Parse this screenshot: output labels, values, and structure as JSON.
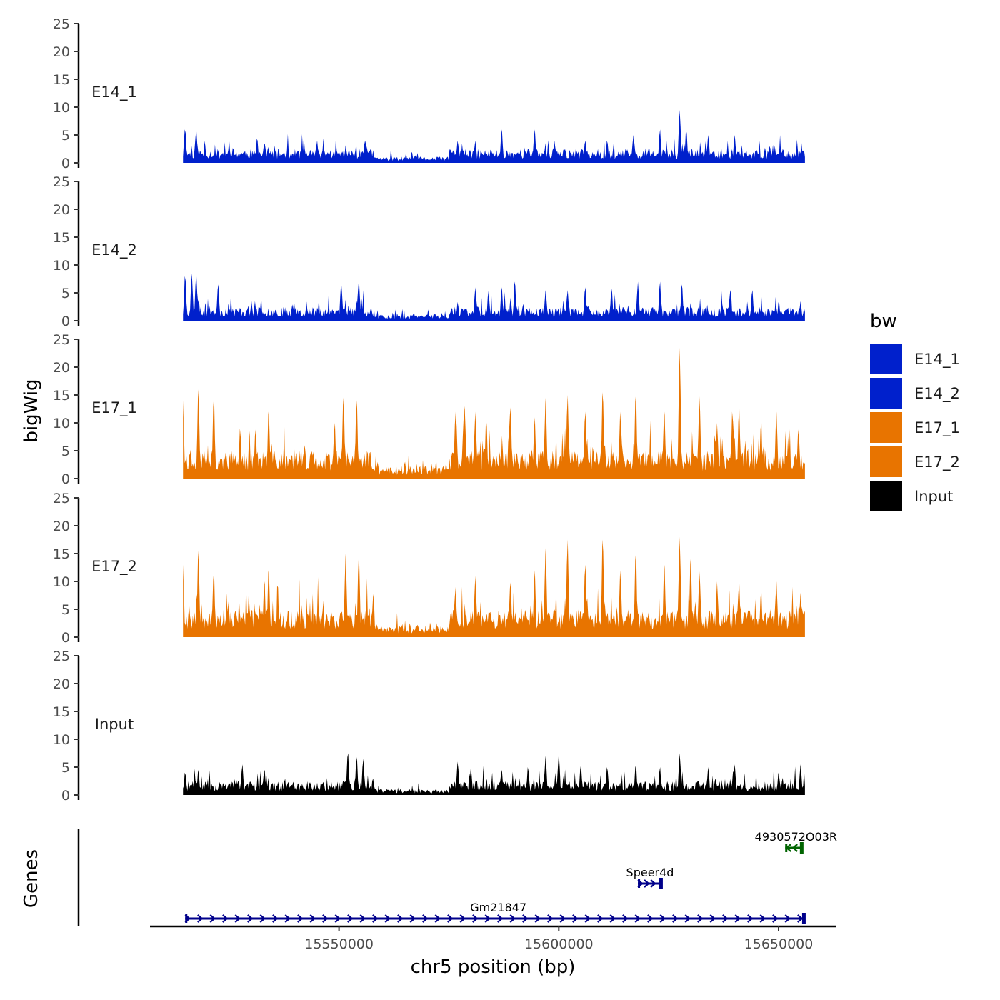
{
  "chart_data": {
    "type": "area",
    "title": "",
    "ylabel": "bigWig",
    "genes_label": "Genes",
    "xlabel": "chr5 position (bp)",
    "chromosome": "chr5",
    "xlim": [
      15507000,
      15663000
    ],
    "data_range": [
      15514500,
      15656000
    ],
    "ylim": [
      0,
      25
    ],
    "yticks": [
      0,
      5,
      10,
      15,
      20,
      25
    ],
    "xticks": [
      15550000,
      15600000,
      15650000
    ],
    "xtick_labels": [
      "15550000",
      "15600000",
      "15650000"
    ],
    "legend": {
      "title": "bw",
      "position": "right",
      "entries": [
        {
          "label": "E14_1",
          "color": "#0020CC"
        },
        {
          "label": "E14_2",
          "color": "#0020CC"
        },
        {
          "label": "E17_1",
          "color": "#E87400"
        },
        {
          "label": "E17_2",
          "color": "#E87400"
        },
        {
          "label": "Input",
          "color": "#000000"
        }
      ]
    },
    "series": [
      {
        "name": "E14_1",
        "color": "#0020CC",
        "baseline": 2,
        "seed": 11,
        "peaks": [
          {
            "pos": 15515000,
            "value": 6
          },
          {
            "pos": 15517500,
            "value": 6
          },
          {
            "pos": 15533000,
            "value": 3.5
          },
          {
            "pos": 15545000,
            "value": 4
          },
          {
            "pos": 15556000,
            "value": 4
          },
          {
            "pos": 15577000,
            "value": 4
          },
          {
            "pos": 15581000,
            "value": 4
          },
          {
            "pos": 15587000,
            "value": 6
          },
          {
            "pos": 15594500,
            "value": 6
          },
          {
            "pos": 15599000,
            "value": 4
          },
          {
            "pos": 15606000,
            "value": 4
          },
          {
            "pos": 15611000,
            "value": 4
          },
          {
            "pos": 15617000,
            "value": 5
          },
          {
            "pos": 15623000,
            "value": 6
          },
          {
            "pos": 15627500,
            "value": 9.5
          },
          {
            "pos": 15629000,
            "value": 6
          },
          {
            "pos": 15634000,
            "value": 5
          },
          {
            "pos": 15640000,
            "value": 5
          },
          {
            "pos": 15648000,
            "value": 3
          }
        ]
      },
      {
        "name": "E14_2",
        "color": "#0020CC",
        "baseline": 2,
        "seed": 23,
        "peaks": [
          {
            "pos": 15515000,
            "value": 8
          },
          {
            "pos": 15516500,
            "value": 8.5
          },
          {
            "pos": 15517500,
            "value": 8.5
          },
          {
            "pos": 15522500,
            "value": 6.5
          },
          {
            "pos": 15550500,
            "value": 7
          },
          {
            "pos": 15554500,
            "value": 7.5
          },
          {
            "pos": 15581000,
            "value": 6
          },
          {
            "pos": 15584000,
            "value": 5.5
          },
          {
            "pos": 15587000,
            "value": 6
          },
          {
            "pos": 15590000,
            "value": 7
          },
          {
            "pos": 15597000,
            "value": 5.5
          },
          {
            "pos": 15602000,
            "value": 5.5
          },
          {
            "pos": 15606000,
            "value": 6
          },
          {
            "pos": 15612000,
            "value": 6
          },
          {
            "pos": 15618000,
            "value": 7
          },
          {
            "pos": 15623000,
            "value": 7
          },
          {
            "pos": 15628000,
            "value": 6.5
          },
          {
            "pos": 15639000,
            "value": 5.5
          },
          {
            "pos": 15644000,
            "value": 5.5
          },
          {
            "pos": 15655000,
            "value": 3.5
          }
        ]
      },
      {
        "name": "E17_1",
        "color": "#E87400",
        "baseline": 4,
        "seed": 37,
        "peaks": [
          {
            "pos": 15514500,
            "value": 14
          },
          {
            "pos": 15518000,
            "value": 16
          },
          {
            "pos": 15521500,
            "value": 15
          },
          {
            "pos": 15527500,
            "value": 9
          },
          {
            "pos": 15531000,
            "value": 9
          },
          {
            "pos": 15534000,
            "value": 12
          },
          {
            "pos": 15549000,
            "value": 10
          },
          {
            "pos": 15551000,
            "value": 15
          },
          {
            "pos": 15554000,
            "value": 14.5
          },
          {
            "pos": 15565000,
            "value": 3
          },
          {
            "pos": 15576500,
            "value": 12
          },
          {
            "pos": 15578500,
            "value": 13
          },
          {
            "pos": 15581000,
            "value": 12
          },
          {
            "pos": 15583500,
            "value": 11
          },
          {
            "pos": 15589000,
            "value": 13
          },
          {
            "pos": 15594500,
            "value": 11
          },
          {
            "pos": 15597000,
            "value": 14.5
          },
          {
            "pos": 15602000,
            "value": 15
          },
          {
            "pos": 15606000,
            "value": 12
          },
          {
            "pos": 15610000,
            "value": 15.5
          },
          {
            "pos": 15614000,
            "value": 12
          },
          {
            "pos": 15617500,
            "value": 15.5
          },
          {
            "pos": 15624000,
            "value": 12
          },
          {
            "pos": 15627500,
            "value": 23.5
          },
          {
            "pos": 15632000,
            "value": 15
          },
          {
            "pos": 15636000,
            "value": 10
          },
          {
            "pos": 15639500,
            "value": 12
          },
          {
            "pos": 15641000,
            "value": 13
          },
          {
            "pos": 15646000,
            "value": 10
          },
          {
            "pos": 15649500,
            "value": 12
          },
          {
            "pos": 15654500,
            "value": 9
          }
        ]
      },
      {
        "name": "E17_2",
        "color": "#E87400",
        "baseline": 4,
        "seed": 53,
        "peaks": [
          {
            "pos": 15514500,
            "value": 13
          },
          {
            "pos": 15518000,
            "value": 15.5
          },
          {
            "pos": 15521500,
            "value": 12
          },
          {
            "pos": 15533000,
            "value": 10
          },
          {
            "pos": 15534000,
            "value": 12
          },
          {
            "pos": 15551500,
            "value": 15
          },
          {
            "pos": 15554500,
            "value": 15.5
          },
          {
            "pos": 15565000,
            "value": 3
          },
          {
            "pos": 15576500,
            "value": 9
          },
          {
            "pos": 15581000,
            "value": 11
          },
          {
            "pos": 15589000,
            "value": 10
          },
          {
            "pos": 15594500,
            "value": 12
          },
          {
            "pos": 15597000,
            "value": 16
          },
          {
            "pos": 15602000,
            "value": 17.5
          },
          {
            "pos": 15606000,
            "value": 13
          },
          {
            "pos": 15610000,
            "value": 17.5
          },
          {
            "pos": 15614000,
            "value": 12
          },
          {
            "pos": 15617500,
            "value": 15.5
          },
          {
            "pos": 15624000,
            "value": 13
          },
          {
            "pos": 15627500,
            "value": 18
          },
          {
            "pos": 15630000,
            "value": 14
          },
          {
            "pos": 15632000,
            "value": 12
          },
          {
            "pos": 15636000,
            "value": 10
          },
          {
            "pos": 15641000,
            "value": 10
          },
          {
            "pos": 15646000,
            "value": 8
          },
          {
            "pos": 15649500,
            "value": 10
          },
          {
            "pos": 15655000,
            "value": 8
          }
        ]
      },
      {
        "name": "Input",
        "color": "#000000",
        "baseline": 2,
        "seed": 71,
        "peaks": [
          {
            "pos": 15515000,
            "value": 4
          },
          {
            "pos": 15518000,
            "value": 4.5
          },
          {
            "pos": 15528000,
            "value": 5.5
          },
          {
            "pos": 15533000,
            "value": 4.5
          },
          {
            "pos": 15552000,
            "value": 7.5
          },
          {
            "pos": 15554000,
            "value": 7
          },
          {
            "pos": 15555500,
            "value": 6.5
          },
          {
            "pos": 15577000,
            "value": 6
          },
          {
            "pos": 15580000,
            "value": 5
          },
          {
            "pos": 15587000,
            "value": 4.5
          },
          {
            "pos": 15593000,
            "value": 5
          },
          {
            "pos": 15597000,
            "value": 7
          },
          {
            "pos": 15600000,
            "value": 7.5
          },
          {
            "pos": 15605000,
            "value": 5.5
          },
          {
            "pos": 15611000,
            "value": 5
          },
          {
            "pos": 15617500,
            "value": 5.5
          },
          {
            "pos": 15623000,
            "value": 5
          },
          {
            "pos": 15627500,
            "value": 7.5
          },
          {
            "pos": 15634000,
            "value": 5
          },
          {
            "pos": 15640000,
            "value": 5.5
          },
          {
            "pos": 15650000,
            "value": 4
          },
          {
            "pos": 15655000,
            "value": 5.5
          }
        ]
      }
    ],
    "genes": [
      {
        "name": "4930572O03R",
        "start": 15651500,
        "end": 15655500,
        "strand": "-",
        "color": "#006400",
        "row": 2
      },
      {
        "name": "Speer4d",
        "start": 15618000,
        "end": 15623500,
        "strand": "+",
        "color": "#00008B",
        "row": 1
      },
      {
        "name": "Gm21847",
        "start": 15515000,
        "end": 15656000,
        "strand": "+",
        "color": "#00008B",
        "row": 0
      }
    ]
  }
}
